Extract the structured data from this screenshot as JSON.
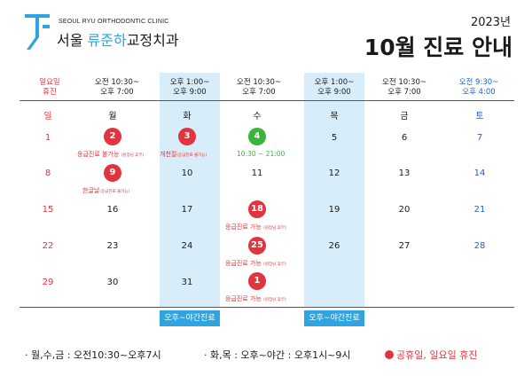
{
  "header": {
    "clinic_en": "SEOUL RYU ORTHODONTIC CLINIC",
    "clinic_ko_pre": "서울 ",
    "clinic_ko_highlight": "류준하",
    "clinic_ko_post": "교정치과",
    "year": "2023년",
    "title": "10월 진료 안내",
    "logo_icon": "clinic-logo-icon"
  },
  "hours": [
    {
      "line1": "일요일",
      "line2": "휴진"
    },
    {
      "line1": "오전 10:30~",
      "line2": "오후 7:00"
    },
    {
      "line1": "오후 1:00~",
      "line2": "오후 9:00"
    },
    {
      "line1": "오전 10:30~",
      "line2": "오후 7:00"
    },
    {
      "line1": "오후 1:00~",
      "line2": "오후 9:00"
    },
    {
      "line1": "오전 10:30~",
      "line2": "오후 7:00"
    },
    {
      "line1": "오전 9:30~",
      "line2": "오후 4:00"
    }
  ],
  "days": [
    "일",
    "월",
    "화",
    "수",
    "목",
    "금",
    "토"
  ],
  "weeks": [
    [
      "1",
      "2",
      "3",
      "4",
      "5",
      "6",
      "7"
    ],
    [
      "8",
      "9",
      "10",
      "11",
      "12",
      "13",
      "14"
    ],
    [
      "15",
      "16",
      "17",
      "18",
      "19",
      "20",
      "21"
    ],
    [
      "22",
      "23",
      "24",
      "25",
      "26",
      "27",
      "28"
    ],
    [
      "29",
      "30",
      "31",
      "1"
    ]
  ],
  "notes": {
    "oct2": "응급진료 불가능",
    "oct2_small": "(원장님 휴무)",
    "oct3": "개천절",
    "oct3_small": "(응급진료 불가능)",
    "oct4": "10:30 ~ 21:00",
    "oct9": "한글날",
    "oct9_small": "(응급진료 불가능)",
    "oct18": "응급진료 가능",
    "oct18_small": "(원장님 휴무)",
    "oct25": "응급진료 가능",
    "oct25_small": "(원장님 휴무)",
    "nov1": "응급진료 가능",
    "nov1_small": "(원장님 휴무)"
  },
  "evening_label": "오후~야간진료",
  "legend": {
    "mon_wed_fri": "· 월,수,금 : 오전10:30~오후7시",
    "tue_thu": "· 화,목 : 오후~야간 : 오후1시~9시",
    "holiday": "공휴일, 일요일 휴진"
  },
  "colors": {
    "accent": "#2fa4e0",
    "holiday_red": "#e0353f",
    "saturday_blue": "#1f5fd0",
    "special_green": "#3ab53a",
    "highlight_column": "#d7eefa"
  }
}
